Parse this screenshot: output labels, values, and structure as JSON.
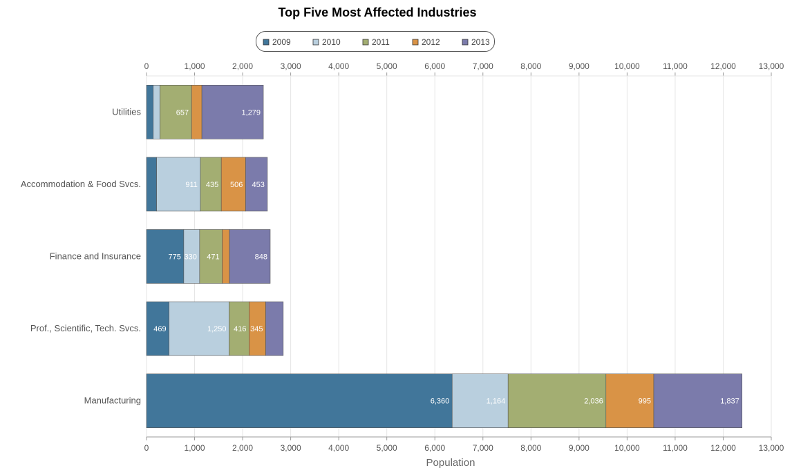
{
  "chart_data": {
    "type": "bar",
    "orientation": "horizontal",
    "stacked": true,
    "title": "Top Five Most Affected Industries",
    "xlabel": "Population",
    "ylabel": "",
    "xlim": [
      0,
      13000
    ],
    "x_ticks": [
      "0",
      "1,000",
      "2,000",
      "3,000",
      "4,000",
      "5,000",
      "6,000",
      "7,000",
      "8,000",
      "9,000",
      "10,000",
      "11,000",
      "12,000",
      "13,000"
    ],
    "grid": true,
    "legend_position": "top-center",
    "categories": [
      "Utilities",
      "Accommodation & Food Svcs.",
      "Finance and Insurance",
      "Prof., Scientific, Tech. Svcs.",
      "Manufacturing"
    ],
    "series": [
      {
        "name": "2009",
        "color": "#41769a",
        "values": [
          140,
          210,
          775,
          469,
          6360
        ],
        "labels": [
          "",
          "",
          "775",
          "469",
          "6,360"
        ]
      },
      {
        "name": "2010",
        "color": "#b9cfde",
        "values": [
          140,
          911,
          330,
          1250,
          1164
        ],
        "labels": [
          "",
          "911",
          "330",
          "1,250",
          "1,164"
        ]
      },
      {
        "name": "2011",
        "color": "#a3ae72",
        "values": [
          657,
          435,
          471,
          416,
          2036
        ],
        "labels": [
          "657",
          "435",
          "471",
          "416",
          "2,036"
        ]
      },
      {
        "name": "2012",
        "color": "#d99346",
        "values": [
          215,
          506,
          150,
          345,
          995
        ],
        "labels": [
          "",
          "506",
          "",
          "345",
          "995"
        ]
      },
      {
        "name": "2013",
        "color": "#7b7bab",
        "values": [
          1279,
          453,
          848,
          365,
          1837
        ],
        "labels": [
          "1,279",
          "453",
          "848",
          "",
          "1,837"
        ]
      }
    ]
  }
}
